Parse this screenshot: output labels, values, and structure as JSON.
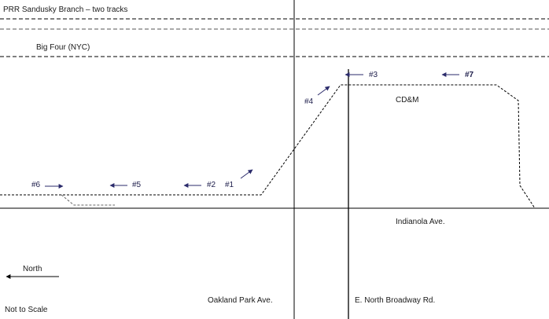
{
  "colors": {
    "track": "#000000",
    "road": "#000000",
    "arrow": "#2b2b6b",
    "text": "#1a1a1a"
  },
  "labels": {
    "prr": "PRR Sandusky Branch – two tracks",
    "big_four": "Big Four (NYC)",
    "cdm": "CD&M",
    "indianola": "Indianola Ave.",
    "oakland": "Oakland Park Ave.",
    "broadway": "E. North Broadway Rd.",
    "north": "North",
    "scale": "Not to Scale"
  },
  "markers": {
    "m1": "#1",
    "m2": "#2",
    "m3": "#3",
    "m4": "#4",
    "m5": "#5",
    "m6": "#6",
    "m7": "#7"
  }
}
